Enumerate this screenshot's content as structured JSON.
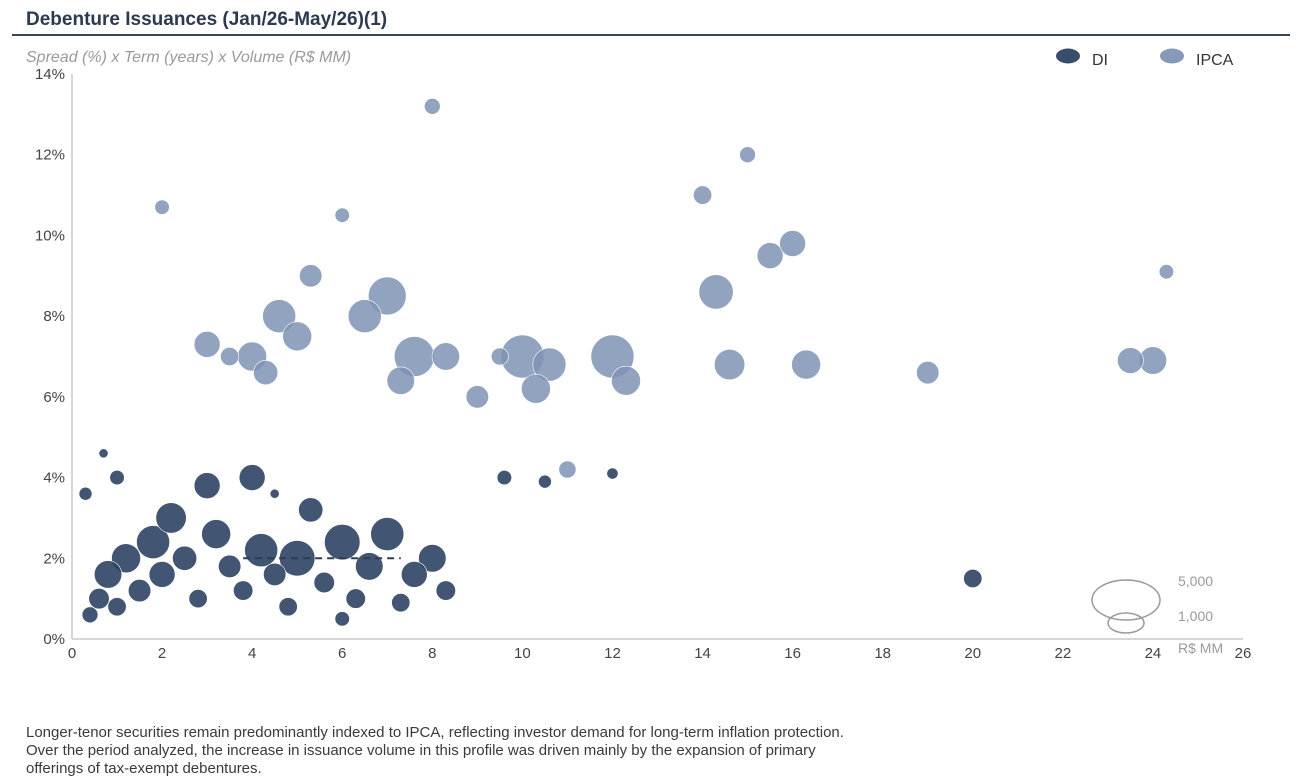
{
  "header": {
    "title": "Debenture Issuances (Jan/26-May/26)(1)",
    "subtitle": "Spread (%) x Term (years) x Volume (R$ MM)"
  },
  "footnote": {
    "lines": [
      "Longer-tenor securities remain predominantly indexed to IPCA, reflecting investor demand for long-term inflation protection.",
      "Over the period analyzed, the increase in issuance volume in this profile was driven mainly by the expansion of primary",
      "offerings of tax-exempt debentures."
    ]
  },
  "chart_data": {
    "type": "scatter",
    "xlim": [
      0,
      26
    ],
    "ylim": [
      0,
      14
    ],
    "x_ticks": [
      "0",
      "2",
      "4",
      "6",
      "8",
      "10",
      "12",
      "14",
      "16",
      "18",
      "20",
      "22",
      "24",
      "26"
    ],
    "y_ticks": [
      "0%",
      "2%",
      "4%",
      "6%",
      "8%",
      "10%",
      "12%",
      "14%"
    ],
    "grid": false,
    "legend": {
      "position": "top-right",
      "entries": [
        "DI",
        "IPCA"
      ]
    },
    "size_legend": {
      "unit": "R$ MM",
      "entries": [
        {
          "label": "5,000",
          "value": 5000
        },
        {
          "label": "1,000",
          "value": 1000
        }
      ]
    },
    "reference_line": {
      "style": "dashed",
      "x": [
        3.8,
        7.3
      ],
      "y": 2.0
    },
    "colors": {
      "DI": "#2e4464",
      "IPCA": "#7f93b5"
    },
    "series": [
      {
        "name": "DI",
        "points": [
          {
            "x": 0.3,
            "y": 3.6,
            "v": 200
          },
          {
            "x": 0.4,
            "y": 0.6,
            "v": 300
          },
          {
            "x": 0.6,
            "y": 1.0,
            "v": 500
          },
          {
            "x": 0.7,
            "y": 4.6,
            "v": 100
          },
          {
            "x": 0.8,
            "y": 1.6,
            "v": 900
          },
          {
            "x": 1.0,
            "y": 4.0,
            "v": 250
          },
          {
            "x": 1.0,
            "y": 0.8,
            "v": 400
          },
          {
            "x": 1.2,
            "y": 2.0,
            "v": 1000
          },
          {
            "x": 1.5,
            "y": 1.2,
            "v": 600
          },
          {
            "x": 1.8,
            "y": 2.4,
            "v": 1300
          },
          {
            "x": 2.0,
            "y": 1.6,
            "v": 800
          },
          {
            "x": 2.2,
            "y": 3.0,
            "v": 1100
          },
          {
            "x": 2.5,
            "y": 2.0,
            "v": 700
          },
          {
            "x": 2.8,
            "y": 1.0,
            "v": 400
          },
          {
            "x": 3.0,
            "y": 3.8,
            "v": 800
          },
          {
            "x": 3.2,
            "y": 2.6,
            "v": 1000
          },
          {
            "x": 3.5,
            "y": 1.8,
            "v": 600
          },
          {
            "x": 3.8,
            "y": 1.2,
            "v": 450
          },
          {
            "x": 4.0,
            "y": 4.0,
            "v": 800
          },
          {
            "x": 4.2,
            "y": 2.2,
            "v": 1300
          },
          {
            "x": 4.5,
            "y": 3.6,
            "v": 100
          },
          {
            "x": 4.5,
            "y": 1.6,
            "v": 600
          },
          {
            "x": 4.8,
            "y": 0.8,
            "v": 400
          },
          {
            "x": 5.0,
            "y": 2.0,
            "v": 1500
          },
          {
            "x": 5.3,
            "y": 3.2,
            "v": 700
          },
          {
            "x": 5.6,
            "y": 1.4,
            "v": 500
          },
          {
            "x": 6.0,
            "y": 2.4,
            "v": 1500
          },
          {
            "x": 6.0,
            "y": 0.5,
            "v": 250
          },
          {
            "x": 6.3,
            "y": 1.0,
            "v": 450
          },
          {
            "x": 6.6,
            "y": 1.8,
            "v": 900
          },
          {
            "x": 7.0,
            "y": 2.6,
            "v": 1300
          },
          {
            "x": 7.3,
            "y": 0.9,
            "v": 400
          },
          {
            "x": 7.6,
            "y": 1.6,
            "v": 800
          },
          {
            "x": 8.0,
            "y": 2.0,
            "v": 900
          },
          {
            "x": 8.3,
            "y": 1.2,
            "v": 450
          },
          {
            "x": 9.6,
            "y": 4.0,
            "v": 250
          },
          {
            "x": 10.5,
            "y": 3.9,
            "v": 200
          },
          {
            "x": 12.0,
            "y": 4.1,
            "v": 150
          },
          {
            "x": 20.0,
            "y": 1.5,
            "v": 400
          }
        ]
      },
      {
        "name": "IPCA",
        "points": [
          {
            "x": 2.0,
            "y": 10.7,
            "v": 250
          },
          {
            "x": 3.0,
            "y": 7.3,
            "v": 800
          },
          {
            "x": 3.5,
            "y": 7.0,
            "v": 400
          },
          {
            "x": 4.0,
            "y": 7.0,
            "v": 1000
          },
          {
            "x": 4.3,
            "y": 6.6,
            "v": 700
          },
          {
            "x": 4.6,
            "y": 8.0,
            "v": 1300
          },
          {
            "x": 5.0,
            "y": 7.5,
            "v": 1000
          },
          {
            "x": 5.3,
            "y": 9.0,
            "v": 600
          },
          {
            "x": 6.0,
            "y": 10.5,
            "v": 250
          },
          {
            "x": 6.5,
            "y": 8.0,
            "v": 1300
          },
          {
            "x": 7.0,
            "y": 8.5,
            "v": 1700
          },
          {
            "x": 7.3,
            "y": 6.4,
            "v": 900
          },
          {
            "x": 7.6,
            "y": 7.0,
            "v": 1900
          },
          {
            "x": 8.0,
            "y": 13.2,
            "v": 300
          },
          {
            "x": 8.3,
            "y": 7.0,
            "v": 900
          },
          {
            "x": 9.0,
            "y": 6.0,
            "v": 600
          },
          {
            "x": 9.5,
            "y": 7.0,
            "v": 350
          },
          {
            "x": 10.0,
            "y": 7.0,
            "v": 2200
          },
          {
            "x": 10.3,
            "y": 6.2,
            "v": 1000
          },
          {
            "x": 10.6,
            "y": 6.8,
            "v": 1300
          },
          {
            "x": 11.0,
            "y": 4.2,
            "v": 350
          },
          {
            "x": 12.0,
            "y": 7.0,
            "v": 2200
          },
          {
            "x": 12.3,
            "y": 6.4,
            "v": 1000
          },
          {
            "x": 14.0,
            "y": 11.0,
            "v": 400
          },
          {
            "x": 14.3,
            "y": 8.6,
            "v": 1400
          },
          {
            "x": 14.6,
            "y": 6.8,
            "v": 1100
          },
          {
            "x": 15.0,
            "y": 12.0,
            "v": 300
          },
          {
            "x": 15.5,
            "y": 9.5,
            "v": 800
          },
          {
            "x": 16.0,
            "y": 9.8,
            "v": 800
          },
          {
            "x": 16.3,
            "y": 6.8,
            "v": 1000
          },
          {
            "x": 19.0,
            "y": 6.6,
            "v": 600
          },
          {
            "x": 23.5,
            "y": 6.9,
            "v": 800
          },
          {
            "x": 24.0,
            "y": 6.9,
            "v": 900
          },
          {
            "x": 24.3,
            "y": 9.1,
            "v": 250
          }
        ]
      }
    ]
  }
}
